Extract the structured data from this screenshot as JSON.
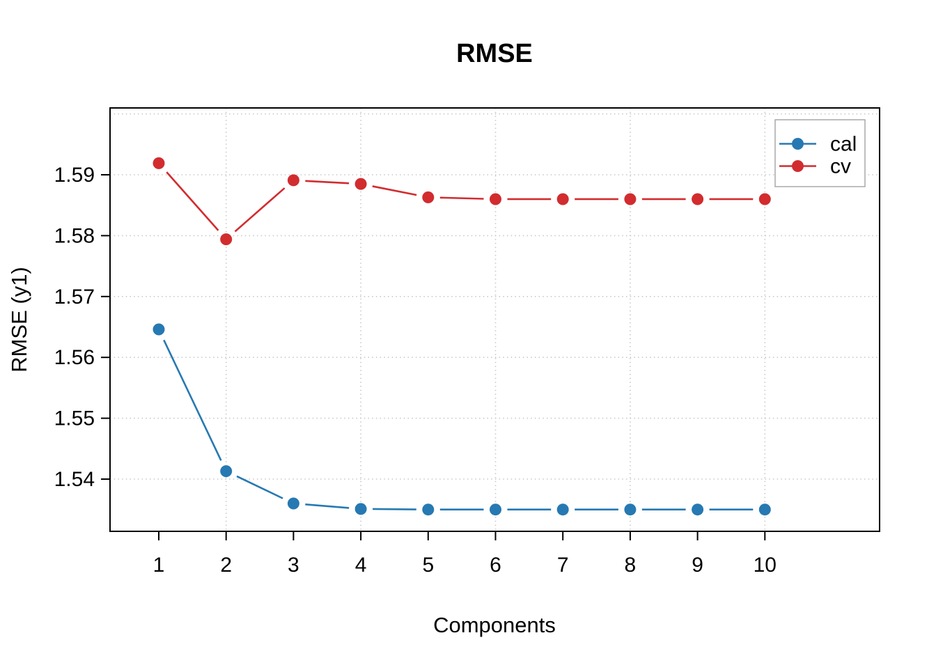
{
  "chart_data": {
    "type": "line",
    "title": "RMSE",
    "xlabel": "Components",
    "ylabel": "RMSE (y1)",
    "x": [
      1,
      2,
      3,
      4,
      5,
      6,
      7,
      8,
      9,
      10
    ],
    "series": [
      {
        "name": "cal",
        "color": "#2679B2",
        "values": [
          1.5646,
          1.5413,
          1.536,
          1.5351,
          1.535,
          1.535,
          1.535,
          1.535,
          1.535,
          1.535
        ]
      },
      {
        "name": "cv",
        "color": "#D22C2F",
        "values": [
          1.5919,
          1.5794,
          1.5891,
          1.5885,
          1.5863,
          1.586,
          1.586,
          1.586,
          1.586,
          1.586
        ]
      }
    ],
    "x_ticks": [
      1,
      2,
      3,
      4,
      5,
      6,
      7,
      8,
      9,
      10
    ],
    "y_ticks": [
      1.54,
      1.55,
      1.56,
      1.57,
      1.58,
      1.59
    ],
    "y_tick_decimals": 2,
    "grid": {
      "h_values": [
        1.54,
        1.55,
        1.56,
        1.57,
        1.58,
        1.59,
        1.6
      ],
      "v_values": [
        2,
        4,
        6,
        8,
        10
      ],
      "color": "#C8C8C8",
      "style": "dotted"
    },
    "axis_color": "#000000",
    "legend": {
      "position": "top-right",
      "entries": [
        "cal",
        "cv"
      ],
      "border_color": "#ADADAD",
      "background": "#ffffff"
    },
    "marker": "filled-circle",
    "ylim": [
      1.5314,
      1.601
    ],
    "xlim": [
      0.27,
      11.7
    ]
  }
}
